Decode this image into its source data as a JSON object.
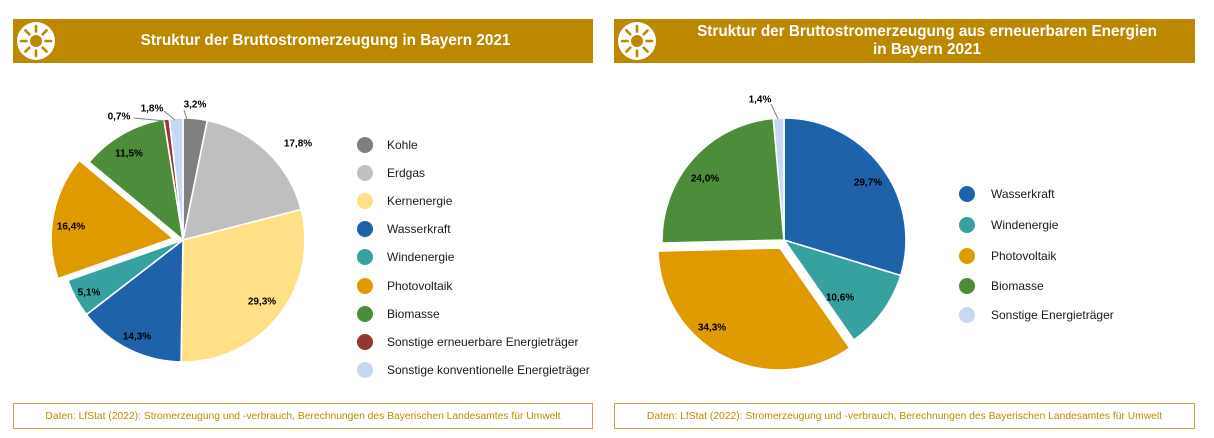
{
  "colors": {
    "header_background": "#BD8700",
    "header_text": "#FFFFFF",
    "footer_text": "#C08A00",
    "footer_border": "#C9A24A",
    "slice_border": "#FFFFFF",
    "leader_line": "#808080",
    "label_text": "#000000"
  },
  "header_icon": "sun-icon",
  "chart_data": [
    {
      "type": "pie",
      "title_lines": [
        "Struktur der Bruttostromerzeugung in Bayern 2021"
      ],
      "categories": [
        "Kohle",
        "Erdgas",
        "Kernenergie",
        "Wasserkraft",
        "Windenergie",
        "Photovoltaik",
        "Biomasse",
        "Sonstige erneuerbare Energieträger",
        "Sonstige konventionelle Energieträger"
      ],
      "values": [
        3.2,
        17.8,
        29.3,
        14.3,
        5.1,
        16.4,
        11.5,
        0.7,
        1.8
      ],
      "value_labels": [
        "3,2%",
        "17,8%",
        "29,3%",
        "14,3%",
        "5,1%",
        "16,4%",
        "11,5%",
        "0,7%",
        "1,8%"
      ],
      "colors": [
        "#7F7F7F",
        "#BFBFBF",
        "#FFE086",
        "#1E63AA",
        "#37A19F",
        "#DF9A00",
        "#4D8C3A",
        "#943634",
        "#C6D9F0"
      ],
      "exploded_index": 5,
      "legend_position": "right",
      "source": "Daten: LfStat (2022): Stromerzeugung und -verbrauch, Berechnungen des Bayerischen Landesamtes für Umwelt"
    },
    {
      "type": "pie",
      "title_lines": [
        "Struktur der Bruttostromerzeugung aus erneuerbaren Energien",
        "in Bayern 2021"
      ],
      "categories": [
        "Wasserkraft",
        "Windenergie",
        "Photovoltaik",
        "Biomasse",
        "Sonstige Energieträger"
      ],
      "values": [
        29.7,
        10.6,
        34.3,
        24.0,
        1.4
      ],
      "value_labels": [
        "29,7%",
        "10,6%",
        "34,3%",
        "24,0%",
        "1,4%"
      ],
      "colors": [
        "#1E63AA",
        "#37A19F",
        "#DF9A00",
        "#4D8C3A",
        "#C6D9F0"
      ],
      "exploded_index": 2,
      "legend_position": "right",
      "source": "Daten: LfStat (2022): Stromerzeugung und -verbrauch, Berechnungen des Bayerischen Landesamtes für Umwelt"
    }
  ]
}
